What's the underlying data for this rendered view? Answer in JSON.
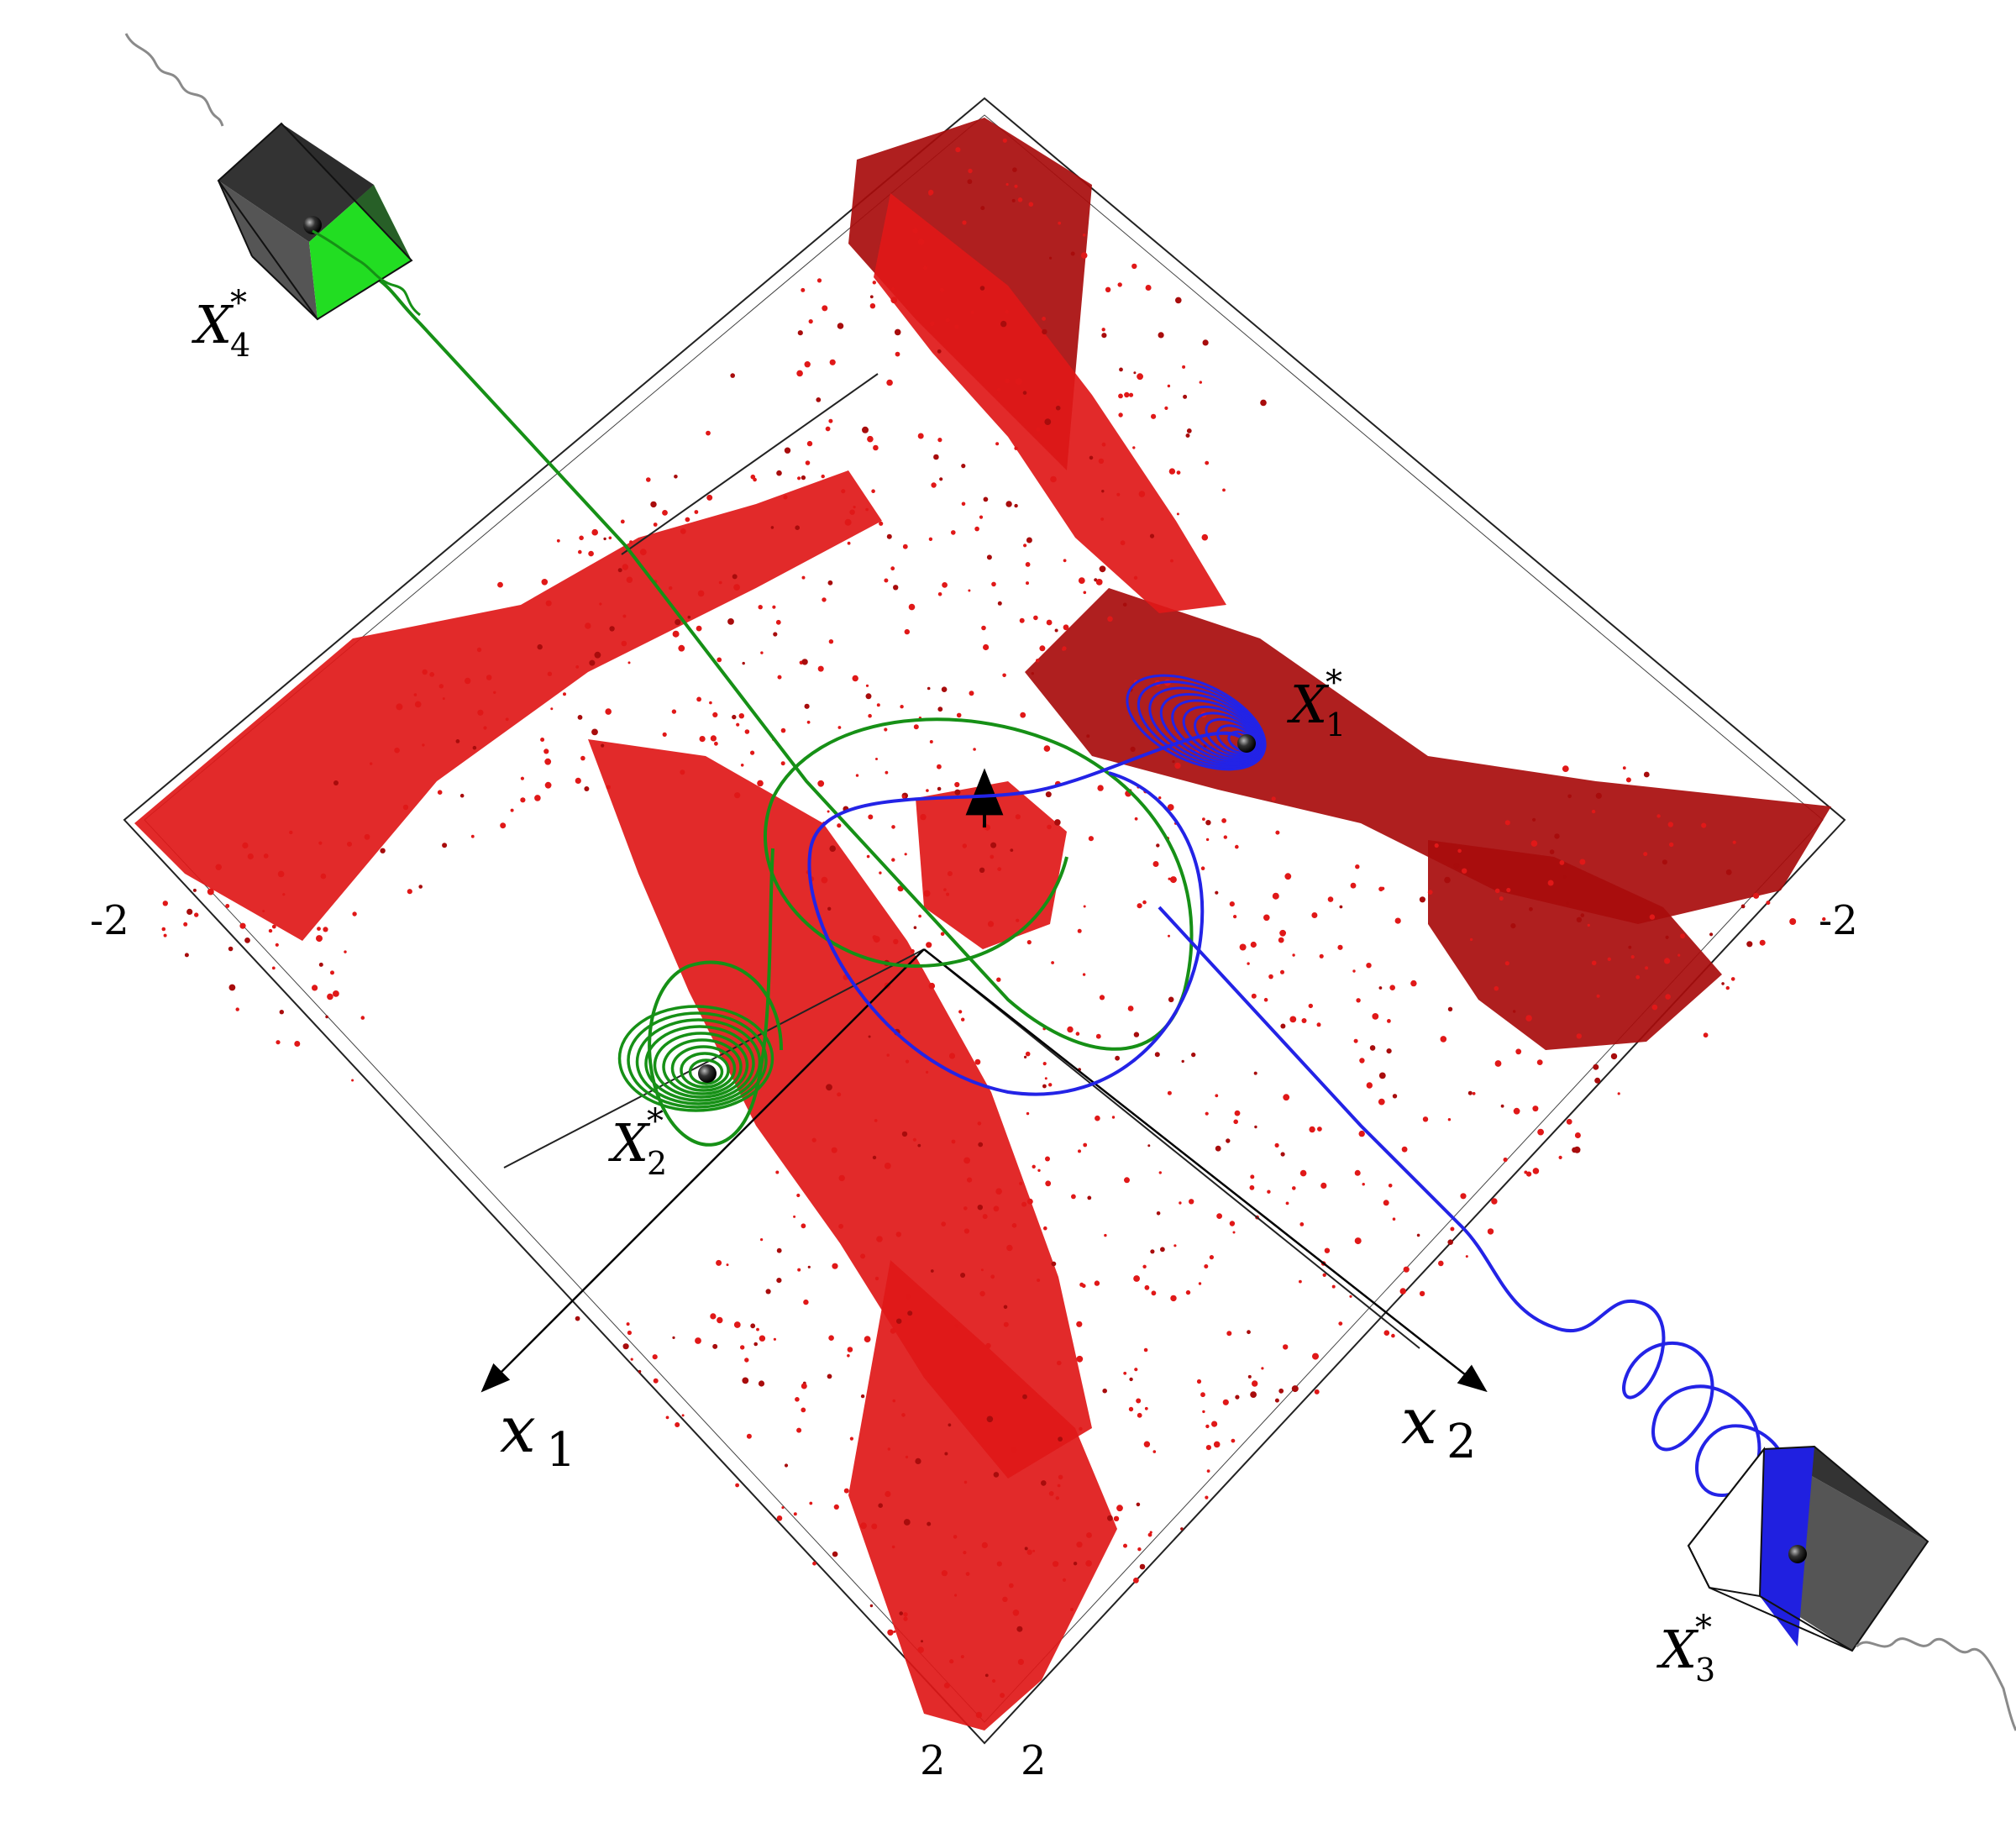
{
  "labels": {
    "fixed_point_1": "X",
    "fixed_point_1_sub": "1",
    "fixed_point_2": "X",
    "fixed_point_2_sub": "2",
    "fixed_point_3": "X",
    "fixed_point_3_sub": "3",
    "fixed_point_4": "X",
    "fixed_point_4_sub": "4",
    "star": "*"
  },
  "axes": {
    "x1_name": "x",
    "x1_sub": "1",
    "x2_name": "x",
    "x2_sub": "2",
    "left_tick": "-2",
    "right_tick": "-2",
    "bottom_tick_left": "2",
    "bottom_tick_right": "2"
  },
  "colors": {
    "basin": "#e01818",
    "basin_dark": "#a80c0c",
    "trajectory_x1_x3": "#2323e6",
    "trajectory_x2_x4": "#169016",
    "cube_face_green": "#22dd22",
    "cube_face_blue": "#2020e0",
    "cube_gray": "#555555",
    "wave": "#8a8a8a",
    "frame": "#222222"
  }
}
